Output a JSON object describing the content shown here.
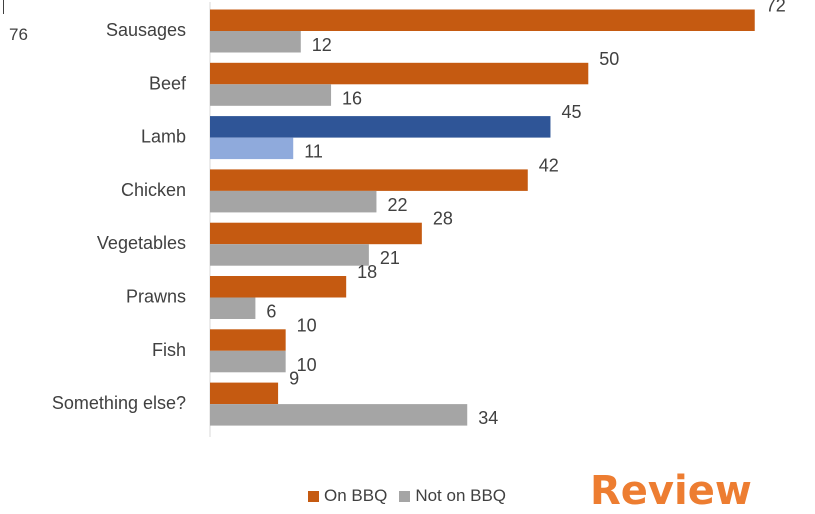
{
  "corner_value": "76",
  "logo_text": "Review",
  "colors": {
    "on_bbq": "#c55a11",
    "not_on_bbq": "#a5a5a5",
    "highlight_on": "#2f5597",
    "highlight_not": "#8faadc",
    "logo": "#ed7d31",
    "axis": "#d9d9d9"
  },
  "chart_data": {
    "type": "bar",
    "orientation": "horizontal",
    "categories": [
      "Sausages",
      "Beef",
      "Lamb",
      "Chicken",
      "Vegetables",
      "Prawns",
      "Fish",
      "Something else?"
    ],
    "series": [
      {
        "name": "On BBQ",
        "values": [
          72,
          50,
          45,
          42,
          28,
          18,
          10,
          9
        ]
      },
      {
        "name": "Not on BBQ",
        "values": [
          12,
          16,
          11,
          22,
          21,
          6,
          10,
          34
        ]
      }
    ],
    "highlight_category": "Lamb",
    "xlim": [
      0,
      76
    ],
    "grid": false,
    "legend_position": "bottom"
  }
}
